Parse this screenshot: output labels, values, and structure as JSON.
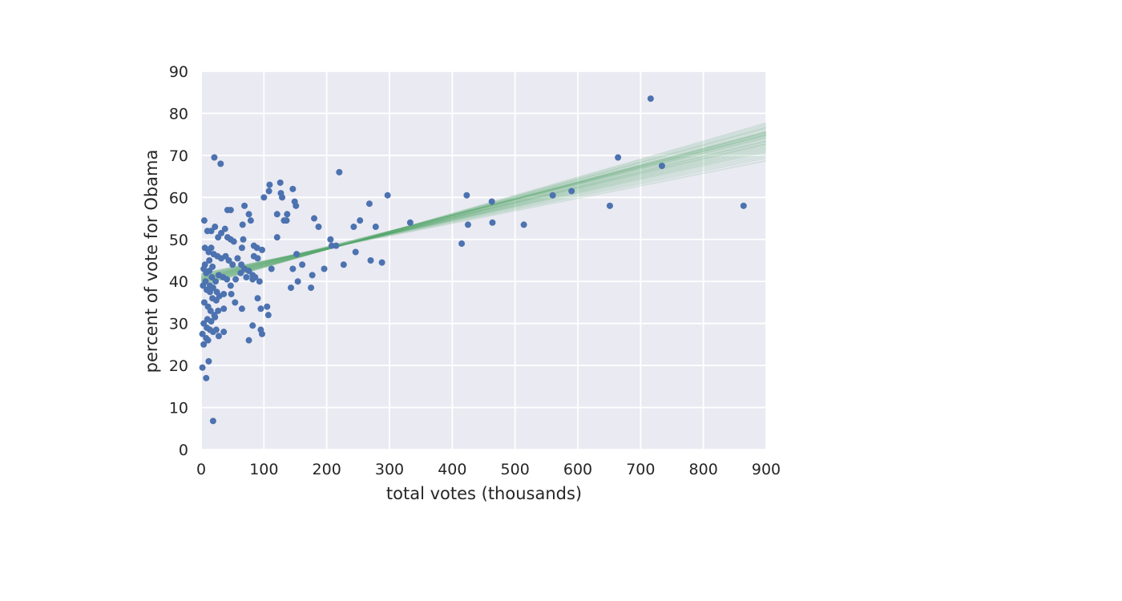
{
  "chart_data": {
    "type": "scatter",
    "title": "",
    "xlabel": "total votes (thousands)",
    "ylabel": "percent of vote for Obama",
    "xlim": [
      0,
      900
    ],
    "ylim": [
      0,
      90
    ],
    "xticks": [
      0,
      100,
      200,
      300,
      400,
      500,
      600,
      700,
      800,
      900
    ],
    "yticks": [
      0,
      10,
      20,
      30,
      40,
      50,
      60,
      70,
      80,
      90
    ],
    "grid": true,
    "background_color": "#eaeaf2",
    "point_color": "#4c72b0",
    "line_color": "#55a868",
    "points": [
      [
        21,
        69.5
      ],
      [
        31,
        68
      ],
      [
        2,
        19.5
      ],
      [
        8,
        17
      ],
      [
        12,
        21
      ],
      [
        19,
        6.8
      ],
      [
        5,
        54.5
      ],
      [
        10,
        52
      ],
      [
        16,
        52
      ],
      [
        22,
        53
      ],
      [
        27,
        50.5
      ],
      [
        32,
        51.5
      ],
      [
        38,
        52.5
      ],
      [
        42,
        50.5
      ],
      [
        47,
        50
      ],
      [
        52,
        49.5
      ],
      [
        6,
        48
      ],
      [
        12,
        47
      ],
      [
        16,
        48
      ],
      [
        20,
        46.5
      ],
      [
        26,
        46
      ],
      [
        32,
        45.5
      ],
      [
        39,
        46
      ],
      [
        44,
        45
      ],
      [
        50,
        44
      ],
      [
        4,
        43
      ],
      [
        8,
        42
      ],
      [
        13,
        42.5
      ],
      [
        17,
        41
      ],
      [
        23,
        40
      ],
      [
        28,
        41.5
      ],
      [
        35,
        41
      ],
      [
        41,
        40.5
      ],
      [
        47,
        39
      ],
      [
        3,
        39
      ],
      [
        9,
        38
      ],
      [
        14,
        37.5
      ],
      [
        18,
        36
      ],
      [
        24,
        35.5
      ],
      [
        29,
        36.5
      ],
      [
        36,
        37
      ],
      [
        48,
        37
      ],
      [
        54,
        35
      ],
      [
        5,
        35
      ],
      [
        11,
        34
      ],
      [
        15,
        33
      ],
      [
        21,
        32
      ],
      [
        27,
        33
      ],
      [
        36,
        33.5
      ],
      [
        10,
        31
      ],
      [
        16,
        30.5
      ],
      [
        22,
        31.5
      ],
      [
        4,
        30
      ],
      [
        9,
        29
      ],
      [
        14,
        28.5
      ],
      [
        19,
        28
      ],
      [
        24,
        28.5
      ],
      [
        28,
        27
      ],
      [
        36,
        28
      ],
      [
        2,
        27.5
      ],
      [
        8,
        26.5
      ],
      [
        4,
        25
      ],
      [
        11,
        26
      ],
      [
        6,
        44
      ],
      [
        13,
        45
      ],
      [
        18,
        43.5
      ],
      [
        7,
        40
      ],
      [
        14,
        39
      ],
      [
        19,
        38.5
      ],
      [
        25,
        37.5
      ],
      [
        42,
        57
      ],
      [
        47,
        57
      ],
      [
        69,
        58
      ],
      [
        76,
        56
      ],
      [
        79,
        54.5
      ],
      [
        66,
        53.5
      ],
      [
        67,
        50
      ],
      [
        65,
        48
      ],
      [
        84,
        48.5
      ],
      [
        89,
        48
      ],
      [
        97,
        47.5
      ],
      [
        84,
        46
      ],
      [
        90,
        45.5
      ],
      [
        58,
        45.5
      ],
      [
        64,
        44
      ],
      [
        69,
        43
      ],
      [
        76,
        42.5
      ],
      [
        82,
        41.5
      ],
      [
        63,
        42
      ],
      [
        72,
        41
      ],
      [
        86,
        41
      ],
      [
        93,
        40
      ],
      [
        55,
        40.5
      ],
      [
        82,
        40.5
      ],
      [
        90,
        36
      ],
      [
        105,
        34
      ],
      [
        95,
        33.5
      ],
      [
        65,
        33.5
      ],
      [
        107,
        32
      ],
      [
        82,
        29.5
      ],
      [
        95,
        28.5
      ],
      [
        97,
        27.5
      ],
      [
        76,
        26
      ],
      [
        100,
        60
      ],
      [
        108,
        61.5
      ],
      [
        109,
        63
      ],
      [
        126,
        63.5
      ],
      [
        127,
        61
      ],
      [
        129,
        60
      ],
      [
        146,
        62
      ],
      [
        149,
        59
      ],
      [
        151,
        58
      ],
      [
        121,
        56
      ],
      [
        137,
        56
      ],
      [
        132,
        54.5
      ],
      [
        136,
        54.5
      ],
      [
        121,
        50.5
      ],
      [
        180,
        55
      ],
      [
        187,
        53
      ],
      [
        112,
        43
      ],
      [
        146,
        43
      ],
      [
        161,
        44
      ],
      [
        196,
        43
      ],
      [
        154,
        40
      ],
      [
        177,
        41.5
      ],
      [
        143,
        38.5
      ],
      [
        175,
        38.5
      ],
      [
        152,
        46.5
      ],
      [
        220,
        66
      ],
      [
        268,
        58.5
      ],
      [
        297,
        60.5
      ],
      [
        253,
        54.5
      ],
      [
        243,
        53
      ],
      [
        278,
        53
      ],
      [
        333,
        54
      ],
      [
        206,
        50
      ],
      [
        208,
        48.5
      ],
      [
        215,
        48.5
      ],
      [
        246,
        47
      ],
      [
        227,
        44
      ],
      [
        270,
        45
      ],
      [
        288,
        44.5
      ],
      [
        423,
        60.5
      ],
      [
        463,
        59
      ],
      [
        415,
        49
      ],
      [
        425,
        53.5
      ],
      [
        464,
        54
      ],
      [
        514,
        53.5
      ],
      [
        560,
        60.5
      ],
      [
        590,
        61.5
      ],
      [
        651,
        58
      ],
      [
        664,
        69.5
      ],
      [
        716,
        83.5
      ],
      [
        734,
        67.5
      ],
      [
        864,
        58
      ]
    ],
    "regression_lines": [
      [
        39.0,
        0.043
      ],
      [
        39.1,
        0.0425
      ],
      [
        39.2,
        0.042
      ],
      [
        39.3,
        0.0415
      ],
      [
        39.4,
        0.041
      ],
      [
        39.5,
        0.0405
      ],
      [
        39.6,
        0.04
      ],
      [
        39.7,
        0.0396
      ],
      [
        39.8,
        0.0392
      ],
      [
        39.9,
        0.0388
      ],
      [
        40.0,
        0.0384
      ],
      [
        40.1,
        0.038
      ],
      [
        40.2,
        0.0376
      ],
      [
        40.3,
        0.0372
      ],
      [
        40.4,
        0.0368
      ],
      [
        40.5,
        0.0364
      ],
      [
        40.6,
        0.036
      ],
      [
        40.7,
        0.0356
      ],
      [
        40.8,
        0.0352
      ],
      [
        40.9,
        0.0348
      ],
      [
        41.0,
        0.0344
      ],
      [
        41.1,
        0.034
      ],
      [
        41.2,
        0.0336
      ],
      [
        41.3,
        0.0332
      ],
      [
        41.4,
        0.0328
      ],
      [
        41.5,
        0.0324
      ],
      [
        41.6,
        0.0318
      ],
      [
        41.7,
        0.0312
      ],
      [
        41.8,
        0.0306
      ],
      [
        41.9,
        0.0298
      ],
      [
        40.0,
        0.0395
      ],
      [
        40.3,
        0.0385
      ],
      [
        40.6,
        0.0378
      ],
      [
        40.9,
        0.037
      ],
      [
        40.2,
        0.039
      ],
      [
        40.5,
        0.0382
      ],
      [
        39.5,
        0.0412
      ],
      [
        40.8,
        0.0362
      ],
      [
        41.2,
        0.035
      ],
      [
        39.8,
        0.0398
      ]
    ]
  }
}
